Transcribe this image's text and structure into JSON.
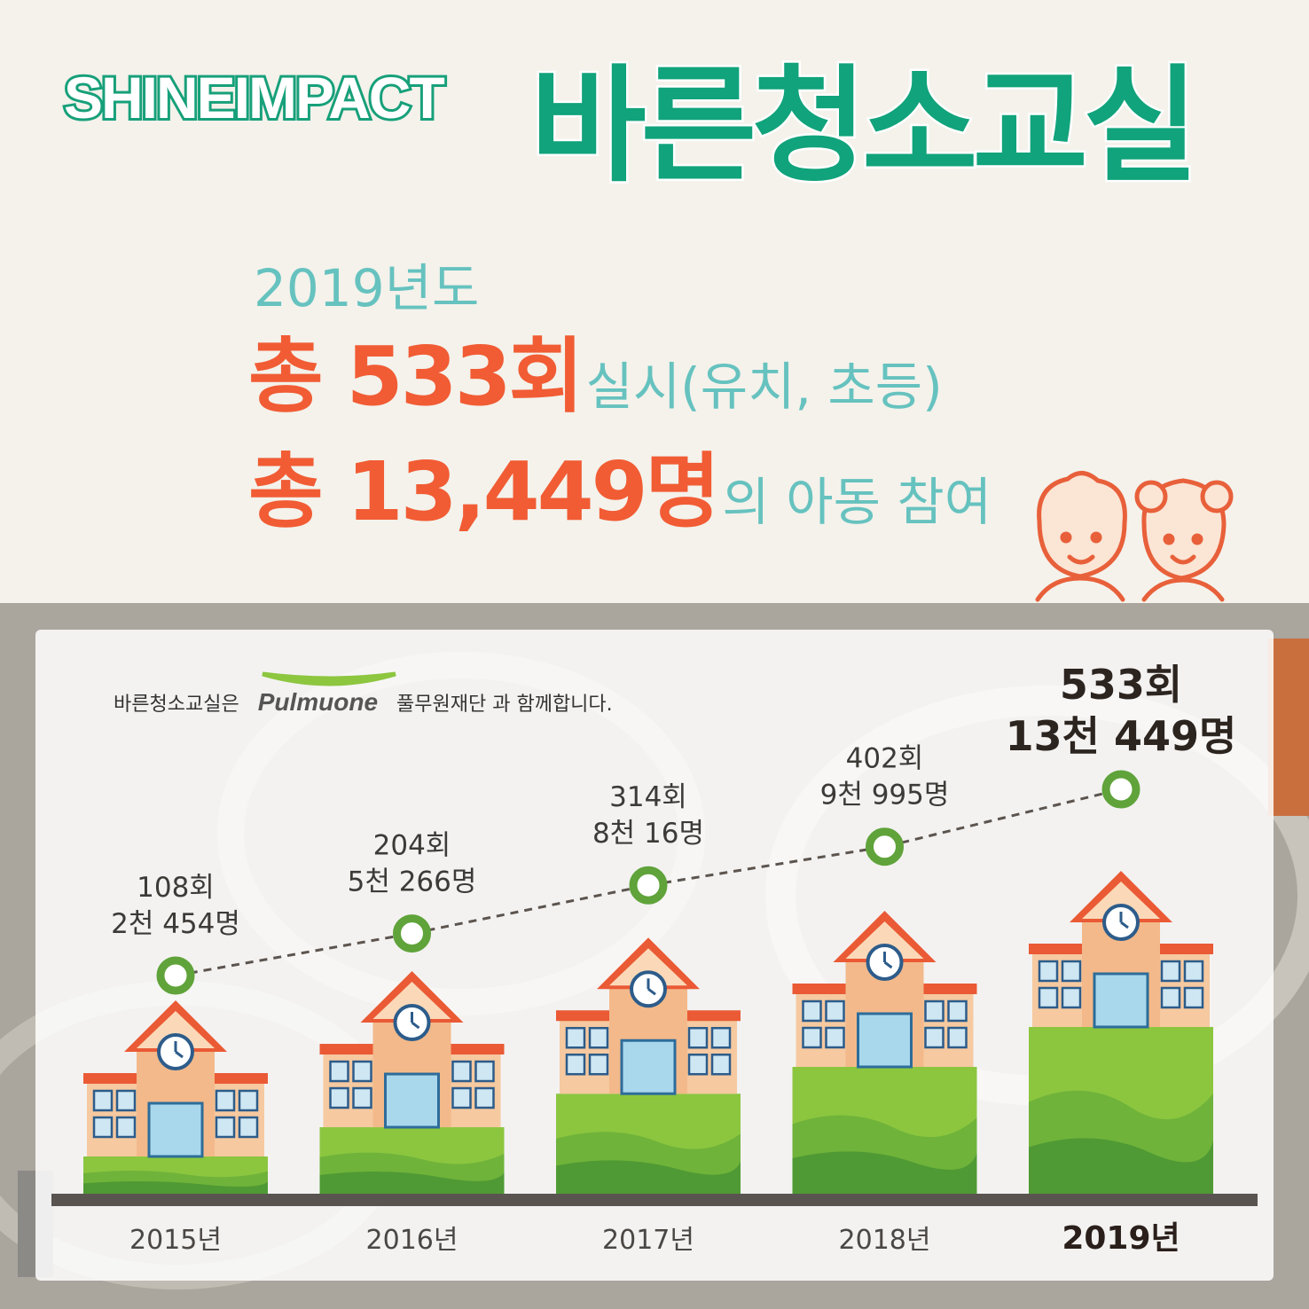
{
  "header": {
    "title_en": "SHINEIMPACT",
    "title_ko": "바른청소교실"
  },
  "summary": {
    "year": "2019년도",
    "line1_prefix": "총 533회",
    "line1_suffix": "실시(유치, 초등)",
    "line2_prefix": "총 13,449명",
    "line2_suffix": "의 아동  참여"
  },
  "partner": {
    "prefix": "바른청소교실은",
    "logo_text": "Pulmuone",
    "suffix": "풀무원재단 과 함께합니다."
  },
  "colors": {
    "title_green": "#11a37b",
    "accent_orange": "#f15c34",
    "accent_teal": "#66c2bf",
    "marker_green": "#5fa33a"
  },
  "chart_data": {
    "type": "line",
    "categories": [
      "2015년",
      "2016년",
      "2017년",
      "2018년",
      "2019년"
    ],
    "series": [
      {
        "values": [
          108,
          204,
          314,
          402,
          533
        ]
      },
      {
        "values": [
          2454,
          5266,
          8016,
          9995,
          13449
        ]
      }
    ],
    "data_labels": [
      [
        "108회",
        "2천 454명"
      ],
      [
        "204회",
        "5천 266명"
      ],
      [
        "314회",
        "8천 16명"
      ],
      [
        "402회",
        "9천 995명"
      ],
      [
        "533회",
        "13천 449명"
      ]
    ],
    "highlight_last": true,
    "grid": false
  }
}
